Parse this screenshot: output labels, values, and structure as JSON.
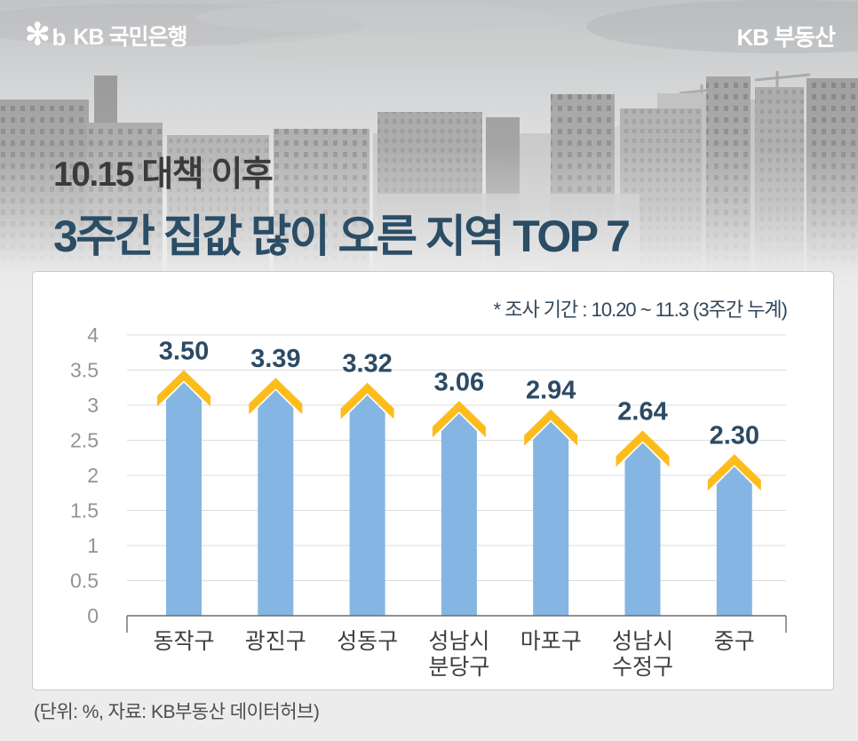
{
  "brand": {
    "bank_logo_star": "✻",
    "bank_logo_b": "b",
    "bank_logo_text": "KB 국민은행",
    "site_logo_text": "KB 부동산"
  },
  "title": {
    "line1": "10.15 대책 이후",
    "line2": "3주간 집값 많이 오른 지역 TOP 7"
  },
  "chart_data": {
    "type": "bar",
    "note": "* 조사 기간 : 10.20 ~ 11.3 (3주간 누계)",
    "categories": [
      "동작구",
      "광진구",
      "성동구",
      "성남시\n분당구",
      "마포구",
      "성남시\n수정구",
      "중구"
    ],
    "values": [
      3.5,
      3.39,
      3.32,
      3.06,
      2.94,
      2.64,
      2.3
    ],
    "value_labels": [
      "3.50",
      "3.39",
      "3.32",
      "3.06",
      "2.94",
      "2.64",
      "2.30"
    ],
    "ylim": [
      0,
      4
    ],
    "ytick_step": 0.5,
    "yticks": [
      "0",
      "0.5",
      "1",
      "1.5",
      "2",
      "2.5",
      "3",
      "3.5",
      "4"
    ],
    "grid": true,
    "legend": false,
    "bar_color": "#85B5E3",
    "cap_color": "#FCBD1C",
    "value_label_color": "#2C4A63",
    "tick_color": "#949494",
    "category_color": "#3f3f3f"
  },
  "footer": {
    "caption": "(단위: %, 자료: KB부동산 데이터허브)"
  }
}
